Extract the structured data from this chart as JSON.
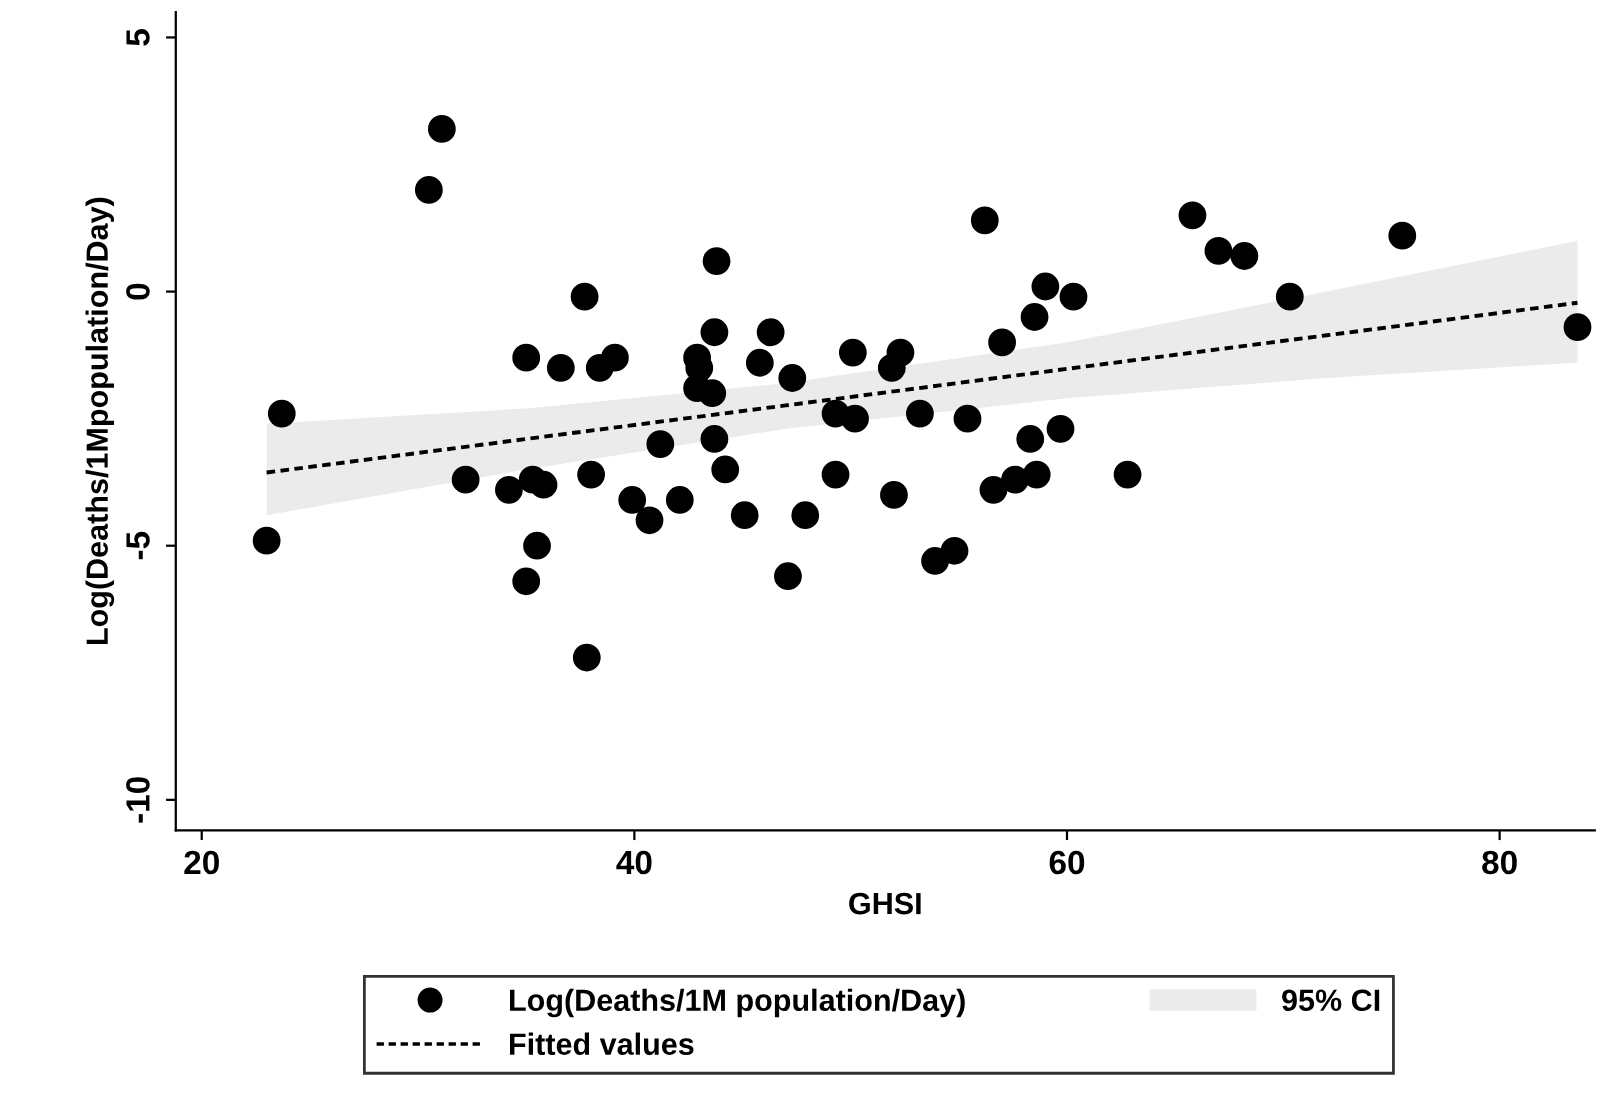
{
  "chart_data": {
    "type": "scatter",
    "xlabel": "GHSI",
    "ylabel": "Log(Deaths/1Mpopulation/Day)",
    "xlim": [
      18.8,
      84.4
    ],
    "ylim": [
      -10.6,
      5.5
    ],
    "xticks": [
      20,
      40,
      60,
      80
    ],
    "yticks": [
      -10,
      -5,
      0,
      5
    ],
    "grid": false,
    "legend": "bottom",
    "annotations": [
      "95% CI"
    ],
    "series": [
      {
        "name": "Log(Deaths/1M population/Day)",
        "color": "#000000",
        "marker": "circle",
        "x": [
          23.0,
          23.7,
          30.5,
          31.1,
          32.2,
          34.2,
          35.0,
          35.0,
          35.3,
          35.5,
          35.8,
          36.6,
          37.7,
          37.8,
          38.0,
          38.4,
          39.1,
          39.9,
          40.7,
          41.2,
          42.1,
          42.9,
          43.0,
          42.9,
          43.6,
          43.7,
          43.8,
          43.7,
          44.2,
          45.1,
          45.8,
          46.3,
          47.1,
          47.3,
          47.9,
          49.3,
          49.3,
          50.2,
          50.1,
          52.0,
          51.9,
          52.3,
          53.2,
          53.9,
          54.8,
          55.4,
          56.2,
          56.6,
          57.0,
          57.6,
          58.3,
          58.6,
          58.5,
          59.0,
          59.7,
          60.3,
          62.8,
          65.8,
          67.0,
          68.2,
          70.3,
          75.5,
          83.6
        ],
        "values": [
          -4.9,
          -2.4,
          2.0,
          3.2,
          -3.7,
          -3.9,
          -1.3,
          -5.7,
          -3.7,
          -5.0,
          -3.8,
          -1.5,
          -0.1,
          -7.2,
          -3.6,
          -1.5,
          -1.3,
          -4.1,
          -4.5,
          -3.0,
          -4.1,
          -1.3,
          -1.5,
          -1.9,
          -2.0,
          -0.8,
          0.6,
          -2.9,
          -3.5,
          -4.4,
          -1.4,
          -0.8,
          -5.6,
          -1.7,
          -4.4,
          -3.6,
          -2.4,
          -2.5,
          -1.2,
          -4.0,
          -1.5,
          -1.2,
          -2.4,
          -5.3,
          -5.1,
          -2.5,
          1.4,
          -3.9,
          -1.0,
          -3.7,
          -2.9,
          -3.6,
          -0.5,
          0.1,
          -2.7,
          -0.1,
          -3.6,
          1.5,
          0.8,
          0.7,
          -0.1,
          1.1,
          -0.7
        ]
      },
      {
        "name": "Fitted values",
        "type": "line",
        "color": "#000000",
        "line_style": "dashed",
        "x": [
          23,
          35,
          47,
          60,
          72,
          83.6
        ],
        "values": [
          -3.56,
          -2.9,
          -2.24,
          -1.52,
          -0.86,
          -0.22
        ],
        "lower": [
          -4.4,
          -3.5,
          -2.7,
          -2.1,
          -1.7,
          -1.4
        ],
        "upper": [
          -2.6,
          -2.3,
          -1.8,
          -1.0,
          0.0,
          1.0
        ]
      }
    ]
  }
}
